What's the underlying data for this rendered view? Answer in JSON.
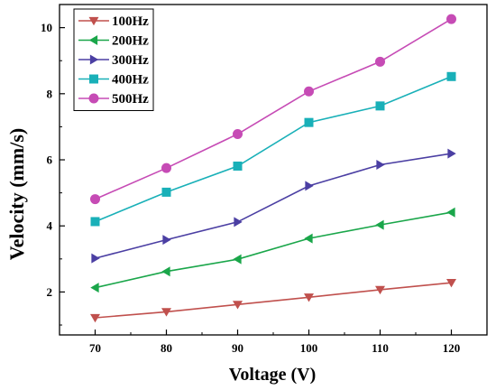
{
  "chart_data": {
    "type": "line",
    "xlabel": "Voltage (V)",
    "ylabel": "Velocity (mm/s)",
    "x": [
      70,
      80,
      90,
      100,
      110,
      120
    ],
    "xlim": [
      65,
      125
    ],
    "ylim": [
      0.7,
      10.7
    ],
    "xticks": [
      70,
      80,
      90,
      100,
      110,
      120
    ],
    "yticks": [
      2,
      4,
      6,
      8,
      10
    ],
    "grid": false,
    "legend_position": "top-left",
    "series": [
      {
        "name": "100Hz",
        "marker": "triangle-down",
        "color": "#c0504d",
        "values": [
          1.22,
          1.4,
          1.62,
          1.84,
          2.07,
          2.28
        ]
      },
      {
        "name": "200Hz",
        "marker": "triangle-left",
        "color": "#1aa64a",
        "values": [
          2.13,
          2.62,
          2.99,
          3.62,
          4.03,
          4.41
        ]
      },
      {
        "name": "300Hz",
        "marker": "triangle-right",
        "color": "#4b3fa3",
        "values": [
          3.02,
          3.58,
          4.12,
          5.21,
          5.85,
          6.19
        ]
      },
      {
        "name": "400Hz",
        "marker": "square",
        "color": "#19b0b8",
        "values": [
          4.13,
          5.02,
          5.81,
          7.13,
          7.63,
          8.52
        ]
      },
      {
        "name": "500Hz",
        "marker": "circle",
        "color": "#c64bb5",
        "values": [
          4.81,
          5.75,
          6.78,
          8.07,
          8.97,
          10.26
        ]
      }
    ]
  }
}
